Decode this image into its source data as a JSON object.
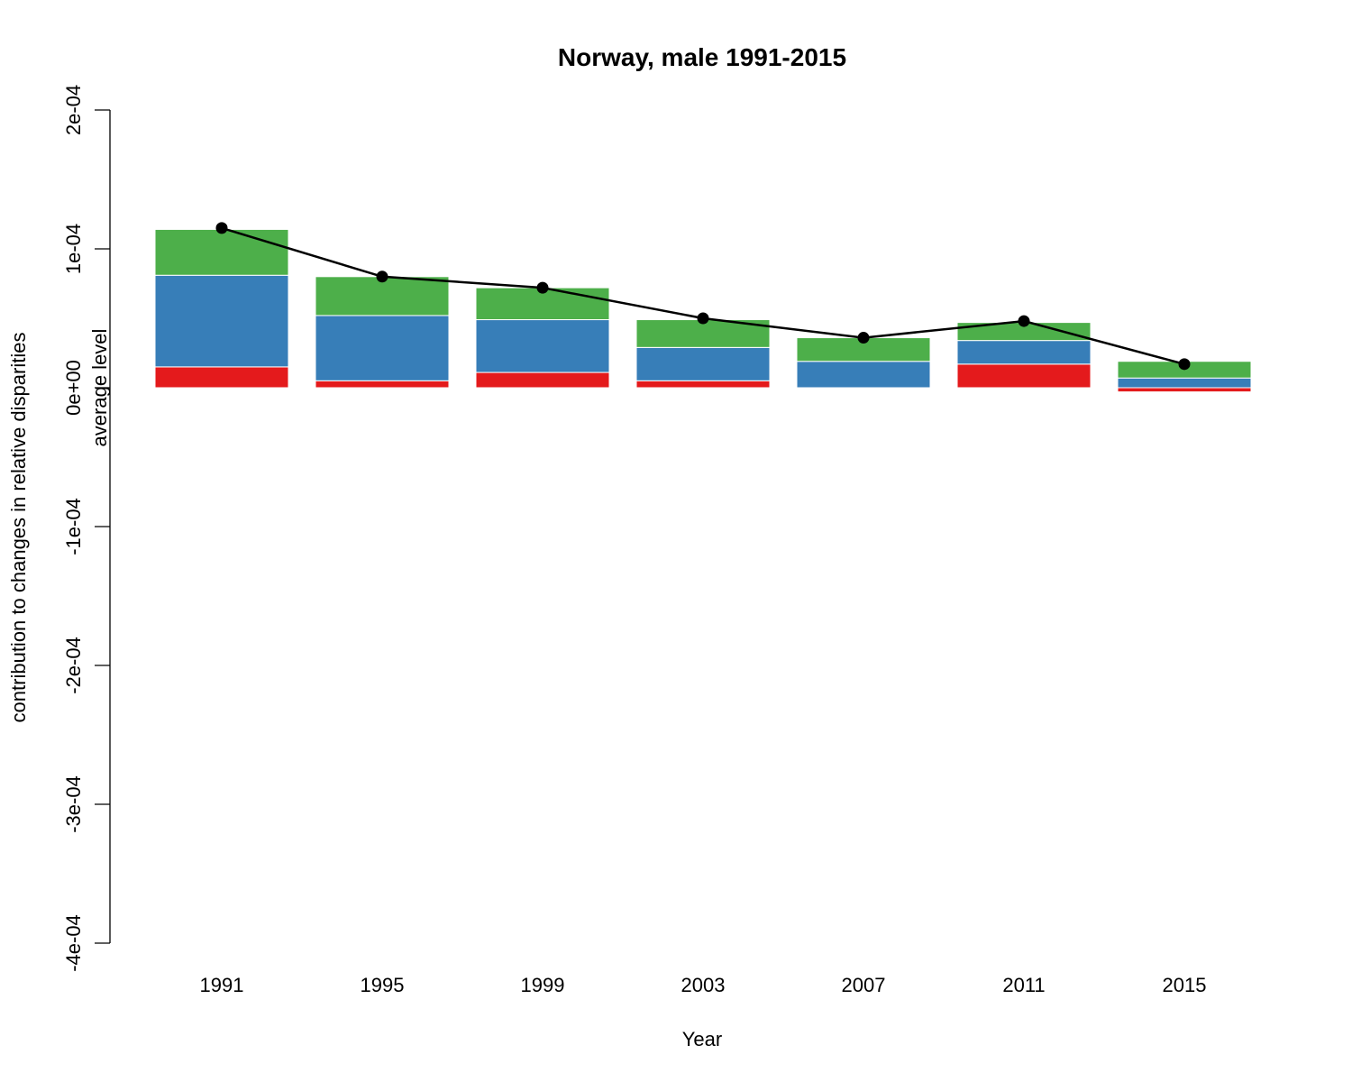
{
  "chart_data": {
    "type": "bar",
    "stacked": true,
    "title": "Norway, male 1991-2015",
    "xlabel": "Year",
    "ylabel": "contribution to changes in relative disparities",
    "line_label": "average level",
    "ylim": [
      -0.0004,
      0.0002
    ],
    "yticks": [
      -0.0004,
      -0.0003,
      -0.0002,
      -0.0001,
      0,
      0.0001,
      0.0002
    ],
    "ytick_labels": [
      "-4e-04",
      "-3e-04",
      "-2e-04",
      "-1e-04",
      "0e+00",
      "1e-04",
      "2e-04"
    ],
    "grid": false,
    "legend": "none",
    "categories": [
      "1991",
      "1995",
      "1999",
      "2003",
      "2007",
      "2011",
      "2015"
    ],
    "series": [
      {
        "color": "#e41a1c",
        "values": [
          1.5e-05,
          5e-06,
          1.1e-05,
          5e-06,
          0.0,
          1.7e-05,
          -3e-06
        ]
      },
      {
        "color": "#377eb8",
        "values": [
          6.6e-05,
          4.7e-05,
          3.8e-05,
          2.4e-05,
          1.9e-05,
          1.7e-05,
          7e-06
        ]
      },
      {
        "color": "#4daf4a",
        "values": [
          3.3e-05,
          2.8e-05,
          2.3e-05,
          2e-05,
          1.7e-05,
          1.3e-05,
          1.2e-05
        ]
      }
    ],
    "line": {
      "color": "#000000",
      "values": [
        0.000115,
        8e-05,
        7.2e-05,
        5e-05,
        3.6e-05,
        4.8e-05,
        1.7e-05
      ]
    }
  }
}
